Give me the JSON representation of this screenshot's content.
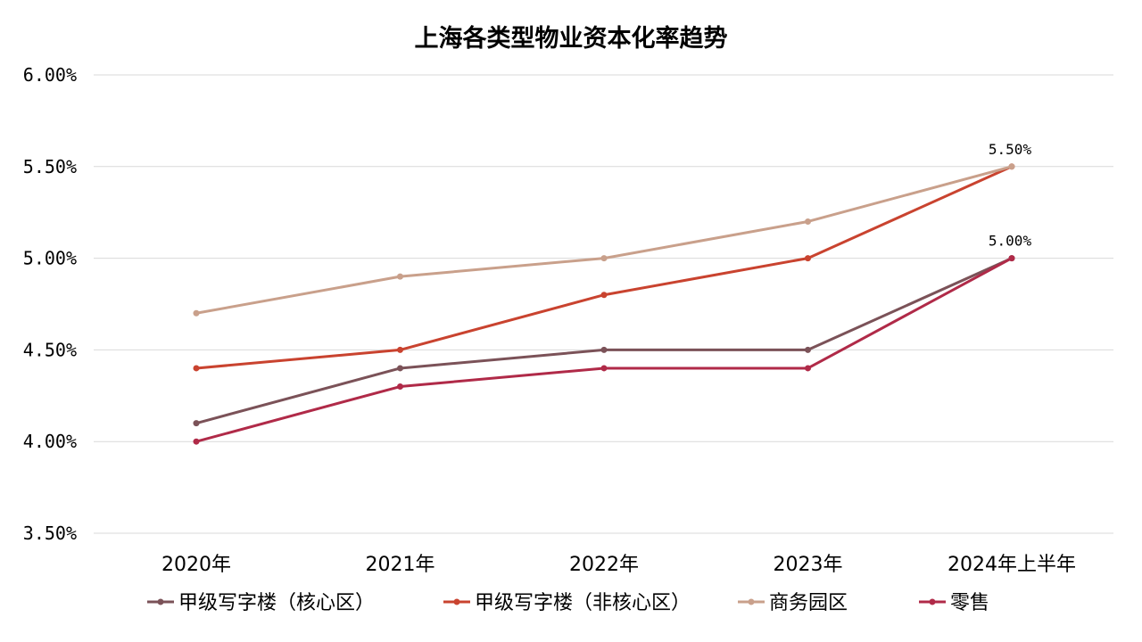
{
  "chart_data": {
    "type": "line",
    "title": "上海各类型物业资本化率趋势",
    "xlabel": "",
    "ylabel": "",
    "categories": [
      "2020年",
      "2021年",
      "2022年",
      "2023年",
      "2024年上半年"
    ],
    "y_tick_labels": [
      "6.00%",
      "5.50%",
      "5.00%",
      "4.50%",
      "4.00%",
      "3.50%"
    ],
    "y_ticks": [
      6.0,
      5.5,
      5.0,
      4.5,
      4.0,
      3.5
    ],
    "ylim": [
      3.5,
      6.0
    ],
    "y_unit": "%",
    "grid": true,
    "legend_position": "bottom",
    "series": [
      {
        "name": "甲级写字楼（核心区）",
        "color": "#7b5258",
        "values": [
          4.1,
          4.4,
          4.5,
          4.5,
          5.0
        ]
      },
      {
        "name": "甲级写字楼（非核心区）",
        "color": "#c9432f",
        "values": [
          4.4,
          4.5,
          4.8,
          5.0,
          5.5
        ]
      },
      {
        "name": "商务园区",
        "color": "#c9a08b",
        "values": [
          4.7,
          4.9,
          5.0,
          5.2,
          5.5
        ]
      },
      {
        "name": "零售",
        "color": "#b02a48",
        "values": [
          4.0,
          4.3,
          4.4,
          4.4,
          5.0
        ]
      }
    ],
    "data_labels": [
      {
        "text": "5.50%",
        "category_index": 4,
        "value": 5.5
      },
      {
        "text": "5.00%",
        "category_index": 4,
        "value": 5.0
      }
    ]
  }
}
